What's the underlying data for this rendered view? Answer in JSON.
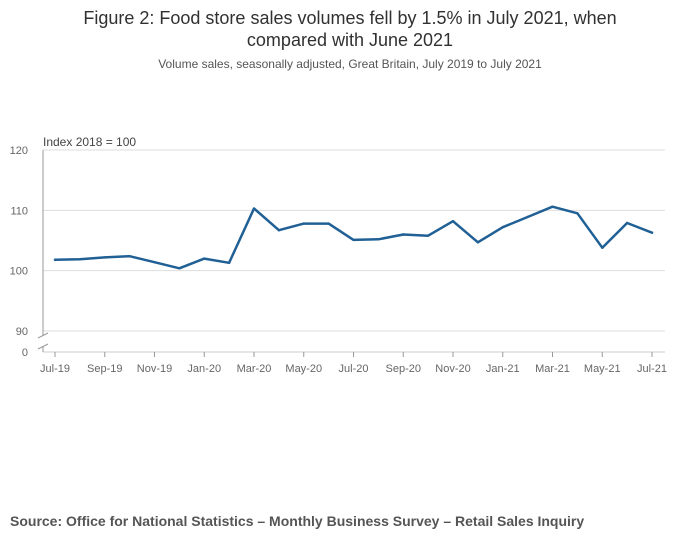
{
  "title": "Figure 2: Food store sales volumes fell by 1.5% in July 2021, when compared with June 2021",
  "subtitle": "Volume sales, seasonally adjusted, Great Britain, July 2019 to July 2021",
  "source": "Source: Office for National Statistics – Monthly Business Survey – Retail Sales Inquiry",
  "chart_data": {
    "type": "line",
    "unit_label": "Index 2018 = 100",
    "ylim": [
      90,
      120
    ],
    "yticks": [
      90,
      100,
      110,
      120
    ],
    "y_break_label": "0",
    "x_tick_labels": [
      "Jul-19",
      "Sep-19",
      "Nov-19",
      "Jan-20",
      "Mar-20",
      "May-20",
      "Jul-20",
      "Sep-20",
      "Nov-20",
      "Jan-21",
      "Mar-21",
      "May-21",
      "Jul-21"
    ],
    "x": [
      "Jul-19",
      "Aug-19",
      "Sep-19",
      "Oct-19",
      "Nov-19",
      "Dec-19",
      "Jan-20",
      "Feb-20",
      "Mar-20",
      "Apr-20",
      "May-20",
      "Jun-20",
      "Jul-20",
      "Aug-20",
      "Sep-20",
      "Oct-20",
      "Nov-20",
      "Dec-20",
      "Jan-21",
      "Feb-21",
      "Mar-21",
      "Apr-21",
      "May-21",
      "Jun-21",
      "Jul-21"
    ],
    "series": [
      {
        "color": "#206095",
        "values": [
          101.8,
          101.9,
          102.2,
          102.4,
          101.4,
          100.4,
          102.0,
          101.3,
          110.3,
          106.7,
          107.8,
          107.8,
          105.1,
          105.2,
          106.0,
          105.8,
          108.2,
          104.7,
          107.2,
          108.9,
          110.6,
          109.5,
          103.8,
          107.9,
          106.3
        ]
      }
    ],
    "grid": true
  }
}
